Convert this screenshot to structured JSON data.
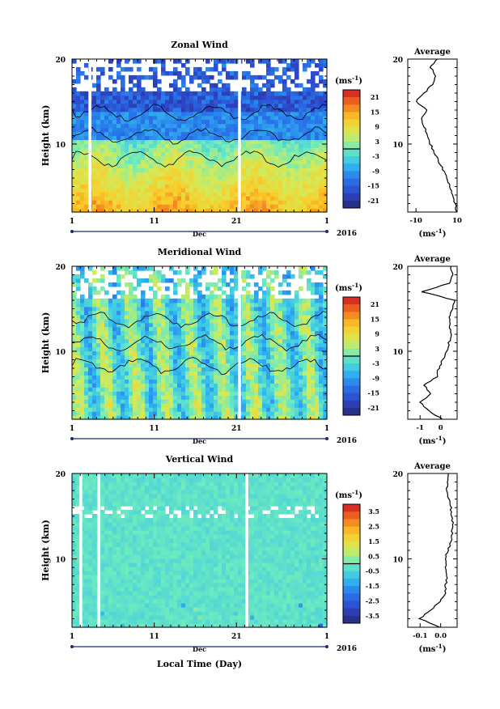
{
  "figure": {
    "xlabel_bottom": "Local Time (Day)",
    "month_label": "Dec",
    "year_label": "2016",
    "unit_label": "(ms",
    "unit_exp": "-1",
    "ylabel": "Height (km)",
    "average_title": "Average"
  },
  "chart_data": [
    {
      "type": "heatmap",
      "title": "Zonal Wind",
      "xlabel": "Dec",
      "ylabel": "Height (km)",
      "x_ticks": [
        "1",
        "11",
        "21",
        "1"
      ],
      "xlim_days": [
        1,
        32
      ],
      "y_ticks": [
        "20",
        "10"
      ],
      "ylim_km": [
        2,
        20
      ],
      "colorbar": {
        "unit": "(ms-1)",
        "ticks": [
          "21",
          "15",
          "9",
          "3",
          "-3",
          "-9",
          "-15",
          "-21"
        ],
        "range": [
          -24,
          24
        ]
      },
      "data_gaps_days": [
        3.2,
        21.4
      ],
      "profile_estimates_km_ms": [
        [
          2,
          10
        ],
        [
          4,
          8
        ],
        [
          6,
          5
        ],
        [
          8,
          1
        ],
        [
          10,
          -3
        ],
        [
          12,
          -6
        ],
        [
          13,
          -7
        ],
        [
          14,
          -5
        ],
        [
          15,
          -10
        ],
        [
          16,
          -6
        ],
        [
          17,
          -2
        ],
        [
          18,
          0
        ],
        [
          19,
          -3
        ],
        [
          20,
          0
        ]
      ],
      "average": {
        "title": "Average",
        "x_ticks": [
          "-10",
          "10"
        ],
        "xlim": [
          -14,
          10
        ],
        "unit": "(ms-1)"
      }
    },
    {
      "type": "heatmap",
      "title": "Meridional Wind",
      "xlabel": "Dec",
      "ylabel": "Height (km)",
      "x_ticks": [
        "1",
        "11",
        "21",
        "1"
      ],
      "xlim_days": [
        1,
        32
      ],
      "y_ticks": [
        "20",
        "10"
      ],
      "ylim_km": [
        2,
        20
      ],
      "colorbar": {
        "unit": "(ms-1)",
        "ticks": [
          "21",
          "15",
          "9",
          "3",
          "-3",
          "-9",
          "-15",
          "-21"
        ],
        "range": [
          -24,
          24
        ]
      },
      "data_gaps_days": [
        21.4
      ],
      "profile_estimates_km_ms": [
        [
          2,
          0.1
        ],
        [
          3,
          -0.6
        ],
        [
          4,
          -1.0
        ],
        [
          5,
          -0.5
        ],
        [
          6,
          -0.8
        ],
        [
          7,
          -0.2
        ],
        [
          8,
          -0.1
        ],
        [
          9,
          0.1
        ],
        [
          10,
          0.3
        ],
        [
          12,
          0.5
        ],
        [
          14,
          0.4
        ],
        [
          16,
          0.7
        ],
        [
          17,
          -0.9
        ],
        [
          18,
          0.4
        ],
        [
          19,
          0.6
        ],
        [
          20,
          0.5
        ]
      ],
      "average": {
        "title": "Average",
        "x_ticks": [
          "-1",
          "0"
        ],
        "xlim": [
          -1.6,
          0.8
        ],
        "unit": "(ms-1)"
      }
    },
    {
      "type": "heatmap",
      "title": "Vertical Wind",
      "xlabel": "Dec",
      "ylabel": "Height (km)",
      "x_ticks": [
        "1",
        "11",
        "21",
        "1"
      ],
      "xlim_days": [
        1,
        32
      ],
      "y_ticks": [
        "20",
        "10"
      ],
      "ylim_km": [
        2,
        20
      ],
      "colorbar": {
        "unit": "(ms-1)",
        "ticks": [
          "3.5",
          "2.5",
          "1.5",
          "0.5",
          "-0.5",
          "-1.5",
          "-2.5",
          "-3.5"
        ],
        "range": [
          -4,
          4
        ]
      },
      "data_gaps_days": [
        2.1,
        4.3,
        22.3
      ],
      "profile_estimates_km_ms": [
        [
          2,
          0.0
        ],
        [
          3,
          -0.1
        ],
        [
          4,
          -0.05
        ],
        [
          5,
          0.0
        ],
        [
          6,
          0.02
        ],
        [
          8,
          0.03
        ],
        [
          10,
          0.02
        ],
        [
          12,
          0.05
        ],
        [
          14,
          0.06
        ],
        [
          16,
          0.05
        ],
        [
          18,
          0.03
        ],
        [
          20,
          0.04
        ]
      ],
      "average": {
        "title": "Average",
        "x_ticks": [
          "-0.1",
          "0.0"
        ],
        "xlim": [
          -0.16,
          0.08
        ],
        "unit": "(ms-1)"
      }
    }
  ]
}
